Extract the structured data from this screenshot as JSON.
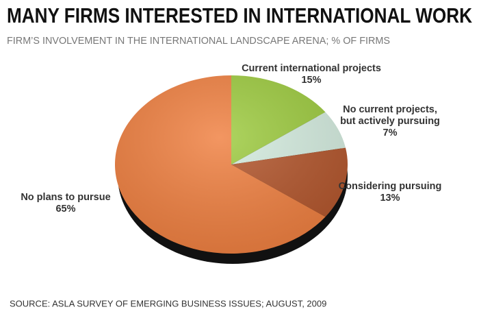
{
  "chart_data": {
    "type": "pie",
    "title": "MANY FIRMS INTERESTED IN INTERNATIONAL WORK",
    "subtitle": "FIRM’S INVOLVEMENT IN THE INTERNATIONAL LANDSCAPE ARENA; % OF FIRMS",
    "source": "SOURCE: ASLA SURVEY OF EMERGING BUSINESS ISSUES; AUGUST, 2009",
    "categories": [
      "Current international projects",
      "No current projects,\nbut actively pursuing",
      "Considering pursuing",
      "No plans to pursue"
    ],
    "values": [
      15,
      7,
      13,
      65
    ],
    "value_labels": [
      "15%",
      "7%",
      "13%",
      "65%"
    ],
    "colors": [
      "#9dcb3e",
      "#d5ede0",
      "#b3552b",
      "#f07f3f"
    ]
  }
}
